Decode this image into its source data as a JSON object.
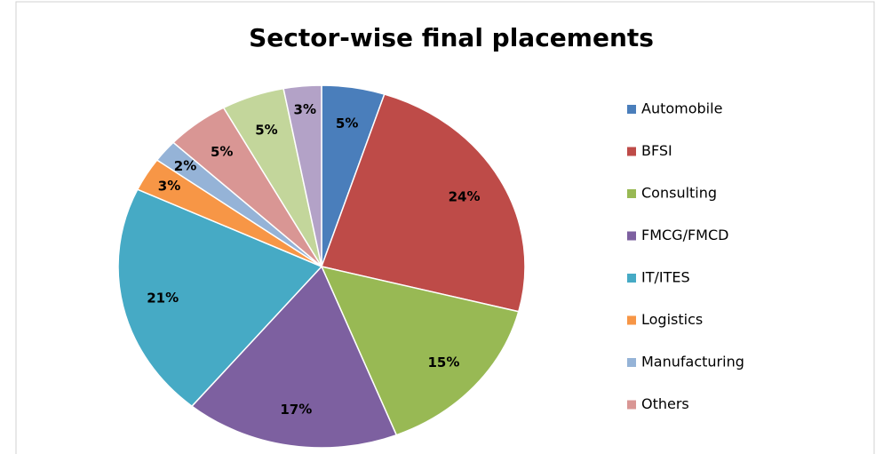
{
  "chart_data": {
    "type": "pie",
    "title": "Sector-wise final placements",
    "categories": [
      "Automobile",
      "BFSI",
      "Consulting",
      "FMCG/FMCD",
      "IT/ITES",
      "Logistics",
      "Manufacturing",
      "Others",
      null,
      null
    ],
    "values": [
      5,
      24,
      15,
      17,
      21,
      3,
      2,
      5,
      5,
      3
    ],
    "colors": [
      "#4a7ebb",
      "#be4b48",
      "#98b954",
      "#7d60a0",
      "#46aac5",
      "#f79646",
      "#95b3d7",
      "#d99694",
      "#c3d69b",
      "#b3a2c7"
    ],
    "legend": "right"
  }
}
